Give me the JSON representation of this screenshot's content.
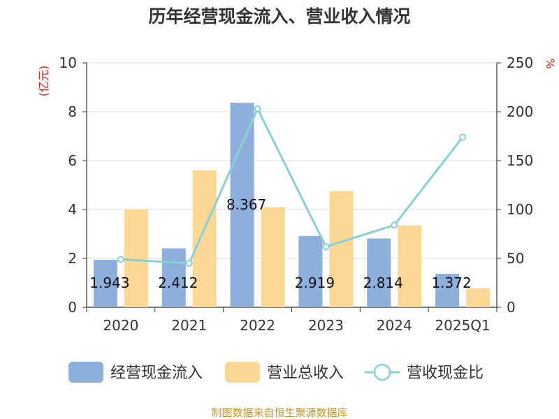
{
  "chart_data": {
    "type": "bar",
    "title": "历年经营现金流入、营业收入情况",
    "categories": [
      "2020",
      "2021",
      "2022",
      "2023",
      "2024",
      "2025Q1"
    ],
    "series": [
      {
        "name": "经营现金流入",
        "kind": "bar",
        "axis": "left",
        "color": "#8eaedb",
        "values": [
          1.943,
          2.412,
          8.367,
          2.919,
          2.814,
          1.372
        ]
      },
      {
        "name": "营业总收入",
        "kind": "bar",
        "axis": "left",
        "color": "#fdd894",
        "values": [
          4.0,
          5.6,
          4.1,
          4.75,
          3.35,
          0.78
        ]
      },
      {
        "name": "营收现金比",
        "kind": "line",
        "axis": "right",
        "color": "#86d0d8",
        "values": [
          49,
          45,
          203,
          62,
          84,
          174
        ]
      }
    ],
    "data_labels": [
      "1.943",
      "2.412",
      "8.367",
      "2.919",
      "2.814",
      "1.372"
    ],
    "left_axis": {
      "unit": "(亿元)",
      "ylim": [
        0,
        10
      ],
      "ticks": [
        "0",
        "2",
        "4",
        "6",
        "8",
        "10"
      ]
    },
    "right_axis": {
      "unit": "%",
      "ylim": [
        0,
        250
      ],
      "ticks": [
        "0",
        "50",
        "100",
        "150",
        "200",
        "250"
      ]
    },
    "grid": true,
    "legend_position": "bottom"
  },
  "source": {
    "text": "制图数据来自恒生聚源数据库",
    "color": "#c8962a"
  },
  "colors": {
    "axis": "#333333",
    "grid": "#d8d8d8",
    "unit": "#e0201b"
  }
}
